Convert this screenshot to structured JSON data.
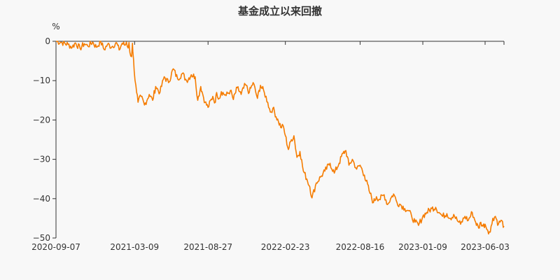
{
  "chart_data": {
    "type": "line",
    "title": "基金成立以来回撤",
    "ylabel": "%",
    "xlabel": "",
    "ylim": [
      -50,
      0
    ],
    "yticks": [
      0,
      -10,
      -20,
      -30,
      -40,
      -50
    ],
    "ytick_labels": [
      "0",
      "−10",
      "−20",
      "−30",
      "−40",
      "−50"
    ],
    "xlim": [
      "2020-09-07",
      "2023-07-17"
    ],
    "xticks": [
      "2020-09-07",
      "2021-03-09",
      "2021-08-27",
      "2022-02-23",
      "2022-08-16",
      "2023-01-09",
      "2023-06-03"
    ],
    "grid": false,
    "legend": "none",
    "series": [
      {
        "color": "#f57c00",
        "x": [
          "2020-09-07",
          "2020-09-21",
          "2020-10-05",
          "2020-10-15",
          "2020-10-22",
          "2020-11-02",
          "2020-11-12",
          "2020-11-20",
          "2020-12-01",
          "2020-12-10",
          "2020-12-20",
          "2020-12-28",
          "2021-01-05",
          "2021-01-15",
          "2021-01-25",
          "2021-02-01",
          "2021-02-08",
          "2021-02-15",
          "2021-02-18",
          "2021-02-22",
          "2021-02-24",
          "2021-02-26",
          "2021-03-02",
          "2021-03-04",
          "2021-03-05",
          "2021-03-08",
          "2021-03-12",
          "2021-03-17",
          "2021-03-24",
          "2021-04-01",
          "2021-04-12",
          "2021-04-20",
          "2021-04-27",
          "2021-05-07",
          "2021-05-17",
          "2021-05-27",
          "2021-06-07",
          "2021-06-17",
          "2021-06-28",
          "2021-07-08",
          "2021-07-19",
          "2021-07-28",
          "2021-08-03",
          "2021-08-10",
          "2021-08-13",
          "2021-08-20",
          "2021-08-27",
          "2021-09-07",
          "2021-09-13",
          "2021-09-16",
          "2021-09-22",
          "2021-09-27",
          "2021-10-08",
          "2021-10-18",
          "2021-10-25",
          "2021-11-03",
          "2021-11-12",
          "2021-11-22",
          "2021-12-01",
          "2021-12-10",
          "2021-12-20",
          "2021-12-27",
          "2022-01-05",
          "2022-01-13",
          "2022-01-19",
          "2022-01-25",
          "2022-02-07",
          "2022-02-14",
          "2022-02-18",
          "2022-02-23",
          "2022-03-02",
          "2022-03-09",
          "2022-03-15",
          "2022-03-22",
          "2022-03-29",
          "2022-04-06",
          "2022-04-14",
          "2022-04-21",
          "2022-04-26",
          "2022-05-06",
          "2022-05-16",
          "2022-05-26",
          "2022-06-07",
          "2022-06-17",
          "2022-06-28",
          "2022-07-07",
          "2022-07-14",
          "2022-07-21",
          "2022-07-29",
          "2022-08-08",
          "2022-08-16",
          "2022-08-26",
          "2022-09-06",
          "2022-09-16",
          "2022-09-23",
          "2022-09-30",
          "2022-10-11",
          "2022-10-19",
          "2022-10-26",
          "2022-11-02",
          "2022-11-10",
          "2022-11-18",
          "2022-11-28",
          "2022-12-06",
          "2022-12-14",
          "2022-12-22",
          "2022-12-30",
          "2023-01-09",
          "2023-01-18",
          "2023-01-30",
          "2023-02-08",
          "2023-02-16",
          "2023-02-24",
          "2023-03-06",
          "2023-03-14",
          "2023-03-22",
          "2023-03-30",
          "2023-04-07",
          "2023-04-17",
          "2023-04-25",
          "2023-05-04",
          "2023-05-12",
          "2023-05-19",
          "2023-05-24",
          "2023-05-29",
          "2023-06-03",
          "2023-06-09",
          "2023-06-15",
          "2023-06-21",
          "2023-06-27",
          "2023-07-04",
          "2023-07-10",
          "2023-07-17"
        ],
        "values": [
          0,
          -0.3,
          -0.8,
          -1.5,
          -0.4,
          -1.8,
          -0.6,
          -1.2,
          -0.2,
          -1.5,
          0,
          -2.1,
          -0.8,
          -1.4,
          -0.3,
          -2.2,
          -0.5,
          -1.0,
          -0.2,
          -1.7,
          -0.3,
          -2.8,
          -3.9,
          -0.5,
          -2.6,
          -7.5,
          -11.2,
          -15.5,
          -14.0,
          -16.2,
          -13.5,
          -15.0,
          -11.5,
          -13.0,
          -9.0,
          -10.5,
          -7.0,
          -9.5,
          -8.2,
          -10.0,
          -8.5,
          -9.0,
          -15.0,
          -11.5,
          -12.8,
          -15.5,
          -16.8,
          -14.0,
          -15.5,
          -13.0,
          -14.5,
          -12.8,
          -13.8,
          -12.5,
          -14.8,
          -11.8,
          -13.5,
          -11.0,
          -13.0,
          -10.5,
          -14.5,
          -11.2,
          -13.0,
          -15.5,
          -18.0,
          -17.0,
          -20.5,
          -22.0,
          -21.5,
          -24.0,
          -27.5,
          -25.0,
          -24.0,
          -29.5,
          -28.0,
          -33.0,
          -35.0,
          -37.0,
          -39.8,
          -36.0,
          -34.5,
          -33.0,
          -31.0,
          -33.5,
          -31.0,
          -28.5,
          -27.8,
          -31.5,
          -30.0,
          -32.5,
          -31.5,
          -34.0,
          -38.0,
          -41.0,
          -39.5,
          -40.2,
          -39.0,
          -41.5,
          -40.0,
          -38.8,
          -41.0,
          -41.5,
          -42.5,
          -43.0,
          -44.5,
          -46.0,
          -46.8,
          -44.5,
          -43.5,
          -42.5,
          -42.2,
          -43.5,
          -44.5,
          -43.8,
          -45.0,
          -44.0,
          -45.5,
          -46.5,
          -44.5,
          -45.5,
          -43.5,
          -46.0,
          -47.5,
          -46.0,
          -47.0,
          -46.5,
          -48.0,
          -48.5,
          -45.0,
          -44.5,
          -46.5,
          -45.5,
          -47.0
        ]
      }
    ]
  }
}
